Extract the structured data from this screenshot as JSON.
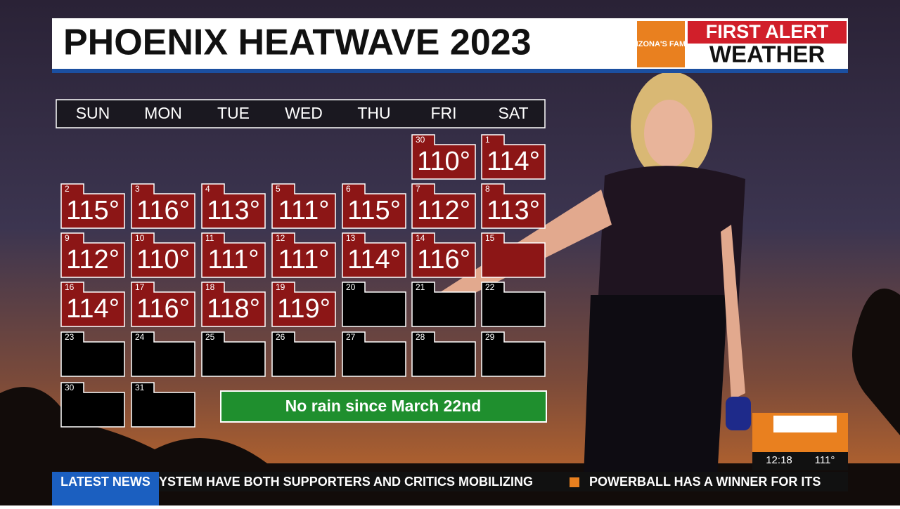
{
  "header": {
    "title": "PHOENIX HEATWAVE 2023",
    "logo_small": "ARIZONA'S FAMILY",
    "logo_top": "FIRST ALERT",
    "logo_bottom": "WEATHER"
  },
  "calendar": {
    "weekdays": [
      "SUN",
      "MON",
      "TUE",
      "WED",
      "THU",
      "FRI",
      "SAT"
    ],
    "weeks": [
      [
        null,
        null,
        null,
        null,
        null,
        {
          "day": "30",
          "temp": "110°"
        },
        {
          "day": "1",
          "temp": "114°"
        }
      ],
      [
        {
          "day": "2",
          "temp": "115°"
        },
        {
          "day": "3",
          "temp": "116°"
        },
        {
          "day": "4",
          "temp": "113°"
        },
        {
          "day": "5",
          "temp": "111°"
        },
        {
          "day": "6",
          "temp": "115°"
        },
        {
          "day": "7",
          "temp": "112°"
        },
        {
          "day": "8",
          "temp": "113°"
        }
      ],
      [
        {
          "day": "9",
          "temp": "112°"
        },
        {
          "day": "10",
          "temp": "110°"
        },
        {
          "day": "11",
          "temp": "111°"
        },
        {
          "day": "12",
          "temp": "111°"
        },
        {
          "day": "13",
          "temp": "114°"
        },
        {
          "day": "14",
          "temp": "116°"
        },
        {
          "day": "15",
          "temp": null
        }
      ],
      [
        {
          "day": "16",
          "temp": "114°"
        },
        {
          "day": "17",
          "temp": "116°"
        },
        {
          "day": "18",
          "temp": "118°"
        },
        {
          "day": "19",
          "temp": "119°"
        },
        {
          "day": "20"
        },
        {
          "day": "21"
        },
        {
          "day": "22"
        }
      ],
      [
        {
          "day": "23"
        },
        {
          "day": "24"
        },
        {
          "day": "25"
        },
        {
          "day": "26"
        },
        {
          "day": "27"
        },
        {
          "day": "28"
        },
        {
          "day": "29"
        }
      ],
      [
        {
          "day": "30"
        },
        {
          "day": "31"
        },
        null,
        null,
        null,
        null,
        null
      ]
    ],
    "note": "No rain since March 22nd"
  },
  "ticker": {
    "label": "LATEST NEWS",
    "text": "YSTEM HAVE BOTH SUPPORTERS AND CRITICS MOBILIZING",
    "text2": "POWERBALL HAS A WINNER FOR ITS"
  },
  "corner": {
    "time": "12:18",
    "temp": "111°"
  }
}
